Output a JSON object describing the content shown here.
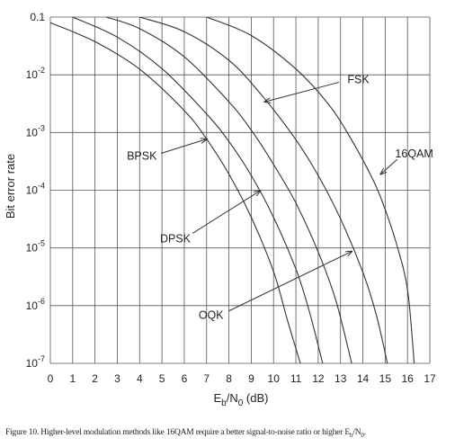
{
  "chart_data": {
    "type": "line",
    "xlabel": "E",
    "xlabel_sub1": "b",
    "xlabel_mid": "/N",
    "xlabel_sub2": "0",
    "xlabel_unit": "(dB)",
    "ylabel": "Bit error rate",
    "xlim": [
      0,
      17
    ],
    "ylim_log10": [
      -7,
      -1
    ],
    "y_scale": "log",
    "grid": true,
    "x_ticks": [
      "0",
      "1",
      "2",
      "3",
      "4",
      "5",
      "6",
      "7",
      "8",
      "9",
      "10",
      "11",
      "12",
      "13",
      "14",
      "15",
      "16",
      "17"
    ],
    "y_ticks": [
      {
        "mant": "0.1",
        "exp": ""
      },
      {
        "mant": "10",
        "exp": "-2"
      },
      {
        "mant": "10",
        "exp": "-3"
      },
      {
        "mant": "10",
        "exp": "-4"
      },
      {
        "mant": "10",
        "exp": "-5"
      },
      {
        "mant": "10",
        "exp": "-6"
      },
      {
        "mant": "10",
        "exp": "-7"
      }
    ],
    "series": [
      {
        "points": [
          [
            0,
            0.08
          ],
          [
            2,
            0.0375
          ],
          [
            4,
            0.0125
          ],
          [
            6,
            0.0024
          ],
          [
            7,
            0.00077
          ],
          [
            8,
            0.00019
          ],
          [
            9,
            3.4e-05
          ],
          [
            10,
            3.9e-06
          ],
          [
            10.6,
            6e-07
          ],
          [
            11.2,
            1e-07
          ]
        ]
      },
      {
        "points": [
          [
            1,
            0.1
          ],
          [
            3,
            0.045
          ],
          [
            5,
            0.0128
          ],
          [
            7,
            0.0021
          ],
          [
            8,
            0.0007
          ],
          [
            9,
            0.00018
          ],
          [
            10,
            3.4e-05
          ],
          [
            11,
            4.3e-06
          ],
          [
            11.6,
            8e-07
          ],
          [
            12.2,
            1e-07
          ]
        ]
      },
      {
        "points": [
          [
            2.5,
            0.1
          ],
          [
            4,
            0.063
          ],
          [
            6,
            0.0205
          ],
          [
            8,
            0.0034
          ],
          [
            9,
            0.0011
          ],
          [
            10,
            0.00028
          ],
          [
            11,
            6e-05
          ],
          [
            12,
            8.5e-06
          ],
          [
            12.8,
            1.2e-06
          ],
          [
            13.5,
            1e-07
          ]
        ]
      },
      {
        "points": [
          [
            4,
            0.1
          ],
          [
            6,
            0.056
          ],
          [
            8,
            0.0178
          ],
          [
            9.5,
            0.0043
          ],
          [
            11,
            0.00075
          ],
          [
            12,
            0.00018
          ],
          [
            13,
            3.2e-05
          ],
          [
            14,
            3.8e-06
          ],
          [
            14.6,
            7e-07
          ],
          [
            15.1,
            1e-07
          ]
        ]
      },
      {
        "points": [
          [
            7,
            0.1
          ],
          [
            9,
            0.048
          ],
          [
            11,
            0.0126
          ],
          [
            12.5,
            0.00295
          ],
          [
            13.5,
            0.00074
          ],
          [
            14.5,
            0.00014
          ],
          [
            15,
            4.6e-05
          ],
          [
            15.5,
            1.2e-05
          ],
          [
            16,
            1.9e-06
          ],
          [
            16.3,
            1e-07
          ]
        ]
      }
    ],
    "annotations": [
      {
        "text": "FSK",
        "label_at": [
          13.8,
          0.0082
        ],
        "arrow_to": [
          9.6,
          0.0034
        ]
      },
      {
        "text": "BPSK",
        "label_at": [
          4.1,
          0.00039
        ],
        "arrow_to": [
          7.0,
          0.00077
        ]
      },
      {
        "text": "DPSK",
        "label_at": [
          5.6,
          1.45e-05
        ],
        "arrow_to": [
          9.4,
          9.8e-05
        ]
      },
      {
        "text": "16QAM",
        "label_at": [
          16.3,
          0.00043
        ],
        "arrow_to": [
          14.8,
          0.00019
        ]
      },
      {
        "text": "OQK",
        "label_at": [
          7.2,
          6.8e-07
        ],
        "arrow_to": [
          13.5,
          8.7e-06
        ]
      }
    ]
  },
  "caption": {
    "text": "Figure 10. Higher-level modulation methods like 16QAM require a better signal-to-noise ratio or higher E",
    "sub1": "b",
    "mid": "/N",
    "sub2": "0",
    "end": "."
  }
}
